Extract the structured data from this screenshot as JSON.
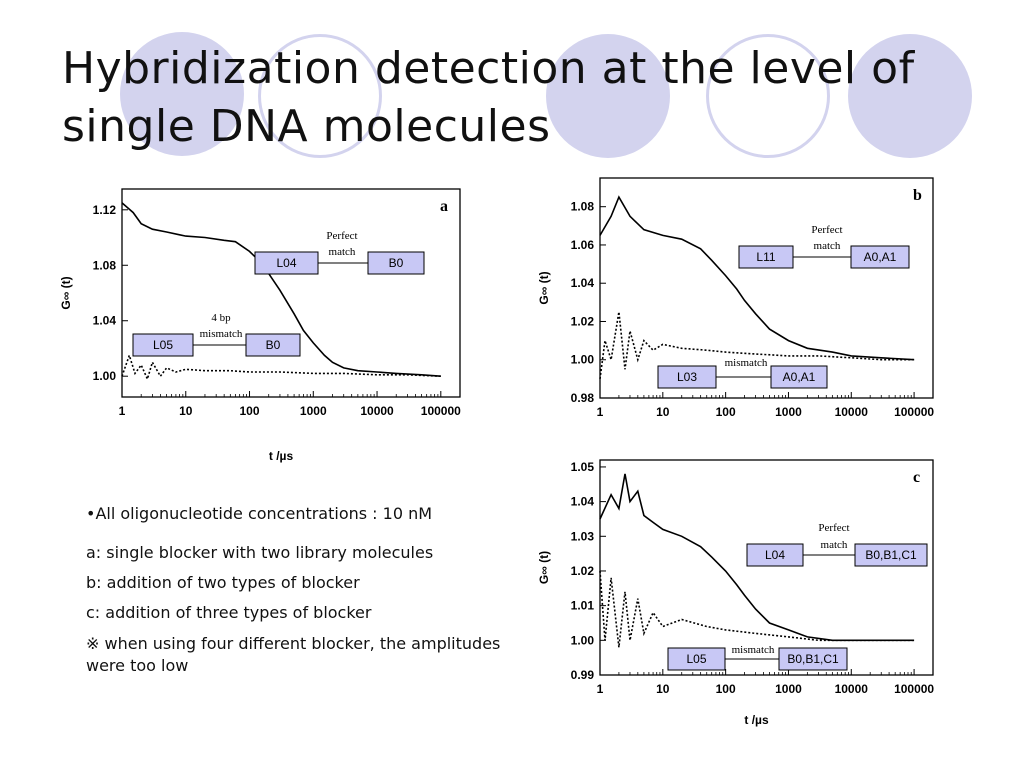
{
  "slide": {
    "title_line1": "Hybridization detection at the level of",
    "title_line2": "single DNA molecules"
  },
  "notes": [
    "•All oligonucleotide concentrations : 10 nM",
    "a: single blocker with two library molecules",
    "b: addition of two types of blocker",
    "c: addition of three types of blocker",
    "※ when using four different blocker, the amplitudes were too low"
  ],
  "colors": {
    "accent_circle": "#d3d3ee",
    "label_box": "#c8c8f5",
    "curve": "#000000"
  },
  "chart_data": [
    {
      "panel": "a",
      "type": "line",
      "xscale": "log",
      "xlim": [
        1,
        200000
      ],
      "ylim": [
        0.985,
        1.135
      ],
      "xticks": [
        1,
        10,
        100,
        1000,
        10000,
        100000
      ],
      "xtick_labels": [
        "1",
        "10",
        "100",
        "1000",
        "10000",
        "100000"
      ],
      "yticks": [
        1.0,
        1.04,
        1.08,
        1.12
      ],
      "ytick_labels": [
        "1.00",
        "1.04",
        "1.08",
        "1.12"
      ],
      "xlabel": "t /µs",
      "ylabel": "G∞ (t)",
      "series": [
        {
          "style": "solid",
          "x": [
            1,
            1.5,
            2,
            3,
            5,
            8,
            10,
            20,
            40,
            60,
            100,
            150,
            200,
            300,
            500,
            700,
            1000,
            1500,
            2000,
            3000,
            5000,
            10000,
            20000,
            50000,
            100000
          ],
          "y": [
            1.125,
            1.118,
            1.11,
            1.106,
            1.104,
            1.102,
            1.101,
            1.1,
            1.098,
            1.097,
            1.09,
            1.082,
            1.074,
            1.062,
            1.045,
            1.033,
            1.024,
            1.015,
            1.01,
            1.006,
            1.004,
            1.003,
            1.002,
            1.001,
            1.0
          ]
        },
        {
          "style": "dotted",
          "x": [
            1,
            1.3,
            1.6,
            2,
            2.5,
            3,
            4,
            5,
            7,
            10,
            20,
            50,
            100,
            300,
            1000,
            3000,
            10000,
            30000,
            100000
          ],
          "y": [
            1.0,
            1.015,
            1.002,
            1.008,
            0.998,
            1.01,
            1.0,
            1.006,
            1.003,
            1.005,
            1.004,
            1.004,
            1.003,
            1.003,
            1.002,
            1.002,
            1.001,
            1.001,
            1.0
          ]
        }
      ],
      "panel_label": "a",
      "annotations": [
        {
          "left": "L04",
          "right": "B0",
          "label_lines": [
            "Perfect",
            "match"
          ]
        },
        {
          "left": "L05",
          "right": "B0",
          "label_lines": [
            "4 bp",
            "mismatch"
          ]
        }
      ]
    },
    {
      "panel": "b",
      "type": "line",
      "xscale": "log",
      "xlim": [
        1,
        200000
      ],
      "ylim": [
        0.98,
        1.095
      ],
      "xticks": [
        1,
        10,
        100,
        1000,
        10000,
        100000
      ],
      "xtick_labels": [
        "1",
        "10",
        "100",
        "1000",
        "10000",
        "100000"
      ],
      "yticks": [
        0.98,
        1.0,
        1.02,
        1.04,
        1.06,
        1.08
      ],
      "ytick_labels": [
        "0.98",
        "1.00",
        "1.02",
        "1.04",
        "1.06",
        "1.08"
      ],
      "xlabel": "",
      "ylabel": "G∞ (t)",
      "series": [
        {
          "style": "solid",
          "x": [
            1,
            1.5,
            2,
            3,
            5,
            10,
            20,
            40,
            60,
            100,
            150,
            200,
            300,
            500,
            1000,
            2000,
            5000,
            10000,
            30000,
            100000
          ],
          "y": [
            1.065,
            1.075,
            1.085,
            1.075,
            1.068,
            1.065,
            1.063,
            1.058,
            1.052,
            1.044,
            1.037,
            1.031,
            1.024,
            1.016,
            1.01,
            1.006,
            1.004,
            1.002,
            1.001,
            1.0
          ]
        },
        {
          "style": "dotted",
          "x": [
            1,
            1.2,
            1.5,
            2,
            2.5,
            3,
            4,
            5,
            7,
            10,
            20,
            50,
            100,
            300,
            1000,
            3000,
            10000,
            30000,
            100000
          ],
          "y": [
            0.99,
            1.01,
            1.0,
            1.025,
            0.995,
            1.015,
            1.0,
            1.01,
            1.005,
            1.008,
            1.006,
            1.005,
            1.004,
            1.003,
            1.002,
            1.002,
            1.001,
            1.0,
            1.0
          ]
        }
      ],
      "panel_label": "b",
      "annotations": [
        {
          "left": "L11",
          "right": "A0,A1",
          "label_lines": [
            "Perfect",
            "match"
          ]
        },
        {
          "left": "L03",
          "right": "A0,A1",
          "label_lines": [
            "mismatch"
          ]
        }
      ]
    },
    {
      "panel": "c",
      "type": "line",
      "xscale": "log",
      "xlim": [
        1,
        200000
      ],
      "ylim": [
        0.99,
        1.052
      ],
      "xticks": [
        1,
        10,
        100,
        1000,
        10000,
        100000
      ],
      "xtick_labels": [
        "1",
        "10",
        "100",
        "1000",
        "10000",
        "100000"
      ],
      "yticks": [
        0.99,
        1.0,
        1.01,
        1.02,
        1.03,
        1.04,
        1.05
      ],
      "ytick_labels": [
        "0.99",
        "1.00",
        "1.01",
        "1.02",
        "1.03",
        "1.04",
        "1.05"
      ],
      "xlabel": "t /µs",
      "ylabel": "G∞ (t)",
      "series": [
        {
          "style": "solid",
          "x": [
            1,
            1.5,
            2,
            2.5,
            3,
            4,
            5,
            7,
            10,
            20,
            40,
            60,
            100,
            150,
            200,
            300,
            500,
            1000,
            2000,
            5000,
            10000,
            30000,
            100000
          ],
          "y": [
            1.035,
            1.042,
            1.038,
            1.048,
            1.04,
            1.043,
            1.036,
            1.034,
            1.032,
            1.03,
            1.027,
            1.024,
            1.02,
            1.016,
            1.013,
            1.009,
            1.005,
            1.003,
            1.001,
            1.0,
            1.0,
            1.0,
            1.0
          ]
        },
        {
          "style": "dotted",
          "x": [
            1,
            1.2,
            1.5,
            2,
            2.5,
            3,
            4,
            5,
            7,
            10,
            20,
            50,
            100,
            300,
            1000,
            3000,
            10000,
            30000,
            100000
          ],
          "y": [
            1.02,
            1.0,
            1.018,
            0.998,
            1.014,
            1.0,
            1.012,
            1.002,
            1.008,
            1.004,
            1.006,
            1.004,
            1.003,
            1.002,
            1.001,
            1.0,
            1.0,
            1.0,
            1.0
          ]
        }
      ],
      "panel_label": "c",
      "annotations": [
        {
          "left": "L04",
          "right": "B0,B1,C1",
          "label_lines": [
            "Perfect",
            "match"
          ]
        },
        {
          "left": "L05",
          "right": "B0,B1,C1",
          "label_lines": [
            "mismatch"
          ]
        }
      ]
    }
  ]
}
